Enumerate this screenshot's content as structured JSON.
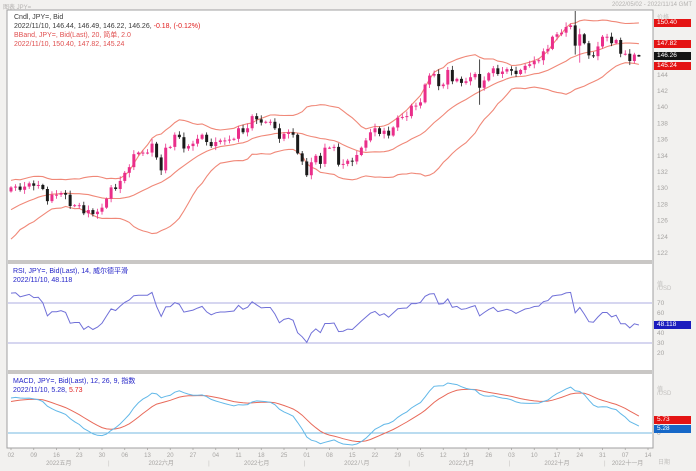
{
  "window": {
    "top_left_label": "图表 JPY=",
    "top_right_label": "2022/05/02 - 2022/11/14 GMT"
  },
  "main_panel": {
    "legend": {
      "line1": "Cndl, JPY=, Bid",
      "line2_black": "2022/11/10, 146.44, 146.49, 146.22, 146.26,",
      "line2_red": "-0.18, (-0.12%)",
      "line3": "BBand, JPY=, Bid(Last), 20, 简单, 2.0",
      "line4": "2022/11/10, 150.40, 147.82, 145.24"
    },
    "axis_title": "价格",
    "y_ticks": [
      144,
      142,
      140,
      138,
      136,
      134,
      132,
      130,
      128,
      126,
      124,
      122
    ],
    "badges": [
      {
        "label": "150.40",
        "value": 150.4
      },
      {
        "label": "147.82",
        "value": 147.82
      },
      {
        "label": "146.26",
        "value": 146.26
      },
      {
        "label": "145.24",
        "value": 145.24
      }
    ]
  },
  "rsi_panel": {
    "legend_line1": "RSI, JPY=, Bid(Last), 14, 威尔德平滑",
    "legend_line2": "2022/11/10, 48.118",
    "axis_title_1": "值",
    "axis_title_2": "/USD",
    "y_ticks": [
      70,
      60,
      50,
      40,
      30,
      20
    ],
    "ref_lines": [
      70,
      30
    ],
    "badge_label": "48.118",
    "badge_value": 48.118
  },
  "macd_panel": {
    "legend_line1": "MACD, JPY=, Bid(Last), 12, 26, 9, 指数",
    "legend_line2_blue": "2022/11/10, 5.28,",
    "legend_line2_red": "5.73",
    "axis_title_1": "值",
    "axis_title_2": "/USD",
    "y_ticks": [
      10,
      5,
      0
    ],
    "badge_red": "5.73",
    "badge_blue": "5.28"
  },
  "x_axis": {
    "axis_title": "日期",
    "day_labels": [
      "02",
      "09",
      "16",
      "23",
      "30",
      "06",
      "13",
      "20",
      "27",
      "04",
      "11",
      "18",
      "25",
      "01",
      "08",
      "15",
      "22",
      "29",
      "05",
      "12",
      "19",
      "26",
      "03",
      "10",
      "17",
      "24",
      "31",
      "07",
      "14"
    ],
    "monday_indices": [
      0,
      5,
      10,
      15,
      20,
      25,
      30,
      35,
      40,
      45,
      50,
      55,
      60,
      65,
      70,
      75,
      80,
      85,
      90,
      95,
      100,
      105,
      110,
      115,
      120,
      125,
      130,
      135,
      140
    ],
    "months": [
      {
        "label": "2022五月",
        "index": 10.5
      },
      {
        "label": "2022六月",
        "index": 33
      },
      {
        "label": "2022七月",
        "index": 54
      },
      {
        "label": "2022八月",
        "index": 76
      },
      {
        "label": "2022九月",
        "index": 99
      },
      {
        "label": "2022十月",
        "index": 120
      },
      {
        "label": "2022十一月",
        "index": 135.5
      }
    ],
    "boundaries": [
      21.5,
      43.5,
      64.5,
      87.5,
      109.5,
      130.5
    ]
  },
  "colors": {
    "candle_up": "#ea2e8a",
    "candle_down": "#1a1a1a",
    "bband": "#f08878",
    "rsi_line": "#7070d8",
    "rsi_ref": "#9090d8",
    "macd_line": "#62b8e8",
    "macd_signal": "#e86a5a",
    "macd_zero": "#74b8e0",
    "frame_border": "#a0a0a0",
    "separator": "#c9c7c5",
    "axis_text": "#a6a4a2"
  },
  "chart_data": {
    "type": "candlestick",
    "symbol": "JPY=",
    "quote": "Bid",
    "interval": "daily",
    "date_range": "2022-05-02 to 2022-11-10",
    "overlays": [
      "BBand(20, simple, 2.0)"
    ],
    "sub_charts": [
      "RSI(14, Wilder smoothing)",
      "MACD(12, 26, 9, exponential)"
    ],
    "main_ylim": [
      122,
      152
    ],
    "first_open": 129.6,
    "warmup_closes": [
      122.7,
      123.7,
      123.9,
      125.4,
      125.4,
      126.3,
      125.9,
      126.5,
      126.4,
      127.0,
      128.5,
      128.9,
      127.9,
      128.5,
      128.7,
      127.7,
      128.1,
      128.4,
      129.8,
      129.7
    ],
    "closes": [
      130.1,
      130.2,
      129.8,
      130.2,
      130.6,
      130.3,
      130.4,
      129.9,
      128.4,
      129.2,
      129.2,
      129.4,
      129.2,
      127.8,
      127.9,
      127.9,
      126.9,
      127.3,
      126.8,
      127.1,
      127.6,
      128.7,
      130.1,
      129.9,
      130.9,
      131.9,
      132.6,
      134.2,
      134.4,
      134.4,
      134.4,
      135.5,
      133.8,
      132.2,
      135.0,
      135.1,
      136.6,
      136.3,
      134.9,
      135.2,
      135.5,
      136.1,
      136.6,
      135.7,
      135.2,
      135.7,
      135.9,
      135.9,
      136.0,
      136.1,
      137.4,
      136.9,
      137.4,
      138.9,
      138.5,
      138.1,
      138.2,
      138.2,
      137.4,
      136.1,
      136.7,
      136.9,
      136.6,
      134.3,
      133.3,
      131.6,
      133.2,
      134.0,
      133.0,
      135.0,
      135.0,
      135.1,
      132.9,
      133.0,
      133.4,
      133.3,
      134.1,
      135.0,
      135.9,
      136.9,
      137.4,
      136.7,
      137.1,
      136.5,
      137.5,
      138.7,
      138.8,
      138.9,
      140.2,
      140.2,
      140.6,
      142.8,
      143.9,
      144.1,
      142.6,
      142.8,
      144.6,
      143.2,
      143.5,
      143.0,
      143.2,
      143.7,
      144.1,
      142.4,
      143.3,
      144.2,
      144.8,
      144.1,
      144.4,
      144.7,
      144.5,
      144.1,
      144.6,
      145.1,
      145.3,
      145.7,
      145.8,
      146.9,
      147.2,
      148.7,
      149.0,
      149.2,
      149.9,
      150.1,
      147.6,
      149.0,
      147.9,
      146.4,
      146.3,
      147.5,
      148.7,
      148.7,
      147.9,
      148.3,
      146.6,
      146.6,
      145.7,
      146.5,
      146.26
    ],
    "wick_overrides": {
      "103": [
        145.9,
        140.3
      ],
      "124": [
        151.95,
        146.5
      ],
      "125": [
        149.7,
        145.5
      ]
    },
    "last_candle": {
      "date": "2022/11/10",
      "open": 146.44,
      "high": 146.49,
      "low": 146.22,
      "close": 146.26,
      "change": -0.18,
      "change_pct": "-0.12%"
    },
    "bband_last": {
      "upper": 150.4,
      "middle": 147.82,
      "lower": 145.24
    },
    "rsi_last": 48.118,
    "macd_last": {
      "macd": 5.28,
      "signal": 5.73
    }
  }
}
